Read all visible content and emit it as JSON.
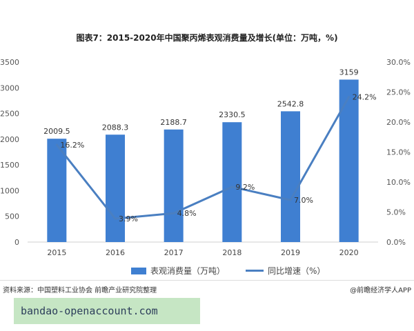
{
  "chart_data": {
    "type": "bar",
    "title": "图表7：2015-2020年中国聚丙烯表观消费量及增长(单位：万吨，%)",
    "categories": [
      "2015",
      "2016",
      "2017",
      "2018",
      "2019",
      "2020"
    ],
    "series": [
      {
        "name": "表观消费量（万吨）",
        "type": "bar",
        "axis": "left",
        "values": [
          2009.5,
          2088.3,
          2188.7,
          2330.5,
          2542.8,
          3159
        ],
        "labels": [
          "2009.5",
          "2088.3",
          "2188.7",
          "2330.5",
          "2542.8",
          "3159"
        ]
      },
      {
        "name": "同比增速（%）",
        "type": "line",
        "axis": "right",
        "values": [
          16.2,
          3.9,
          4.8,
          9.2,
          7.0,
          24.2
        ],
        "labels": [
          "16.2%",
          "3.9%",
          "4.8%",
          "9.2%",
          "7.0%",
          "24.2%"
        ]
      }
    ],
    "ylim": [
      0,
      3500
    ],
    "yticks": [
      "0",
      "500",
      "1000",
      "1500",
      "2000",
      "2500",
      "3000",
      "3500"
    ],
    "y2lim": [
      0,
      30
    ],
    "y2ticks": [
      "0.0%",
      "5.0%",
      "10.0%",
      "15.0%",
      "20.0%",
      "25.0%",
      "30.0%"
    ],
    "grid": false,
    "legend": "bottom",
    "colors": {
      "bar": "#3f7fd1",
      "line": "#4a7fc1"
    }
  },
  "footer": {
    "source": "资料来源：中国塑料工业协会 前瞻产业研究院整理",
    "app": "@前瞻经济学人APP"
  },
  "watermark": "bandao-openaccount.com"
}
